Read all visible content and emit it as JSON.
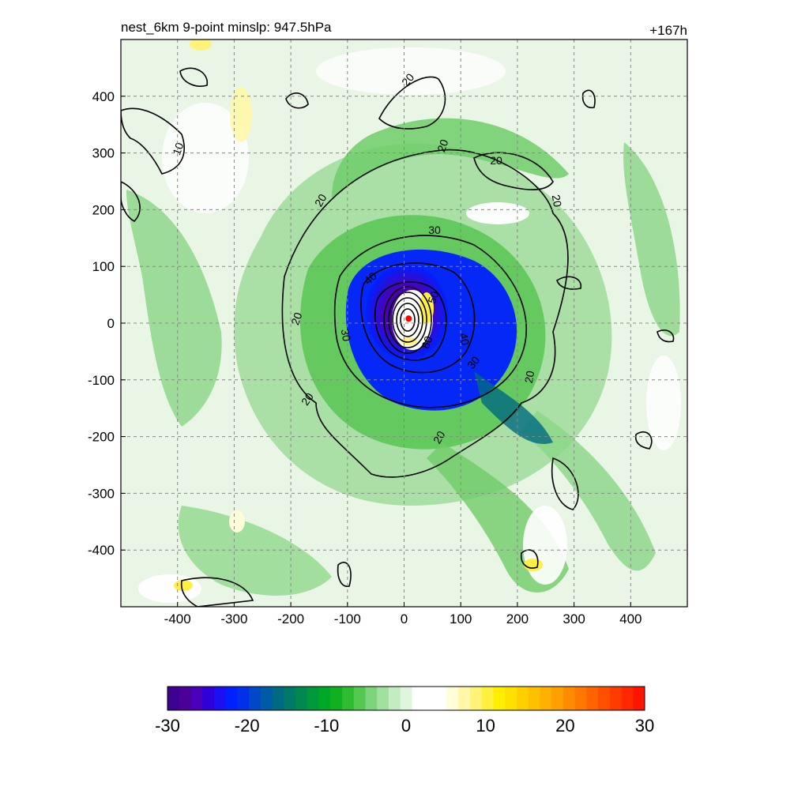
{
  "chart_data": {
    "type": "heatmap",
    "title": "nest_6km  9-point minslp: 947.5hPa",
    "time_label": "+167h",
    "xlim": [
      -500,
      500
    ],
    "ylim": [
      -500,
      500
    ],
    "x_ticks": [
      -400,
      -300,
      -200,
      -100,
      0,
      100,
      200,
      300,
      400
    ],
    "y_ticks": [
      400,
      300,
      200,
      100,
      0,
      -100,
      -200,
      -300,
      -400
    ],
    "grid": true,
    "colorbar": {
      "range": [
        -30,
        30
      ],
      "ticks": [
        -30,
        -20,
        -10,
        0,
        10,
        20,
        30
      ],
      "colors": [
        "#3d0090",
        "#4b0098",
        "#4a00b8",
        "#3000d8",
        "#1a10f0",
        "#0020ff",
        "#0030e8",
        "#0048c8",
        "#005aa8",
        "#006a80",
        "#00786a",
        "#008850",
        "#009838",
        "#00a828",
        "#10b020",
        "#30bc30",
        "#55c850",
        "#7dd47a",
        "#a2e0a0",
        "#c4ecc2",
        "#e0f5de",
        "#ffffff",
        "#ffffff",
        "#ffffff",
        "#fffcd8",
        "#fff8a8",
        "#fff478",
        "#fff040",
        "#ffee00",
        "#ffe000",
        "#ffd000",
        "#ffc000",
        "#ffb000",
        "#ffa000",
        "#ff8c00",
        "#ff7800",
        "#ff6400",
        "#ff5000",
        "#ff3c00",
        "#ff2800",
        "#ff1400"
      ]
    },
    "contour_labels": [
      "10",
      "20",
      "20",
      "20",
      "20",
      "20",
      "20",
      "20",
      "20",
      "20",
      "30",
      "30",
      "30",
      "40",
      "40",
      "50",
      "60"
    ],
    "storm_center": {
      "x": 8,
      "y": 8,
      "color": "#ff0000"
    }
  }
}
